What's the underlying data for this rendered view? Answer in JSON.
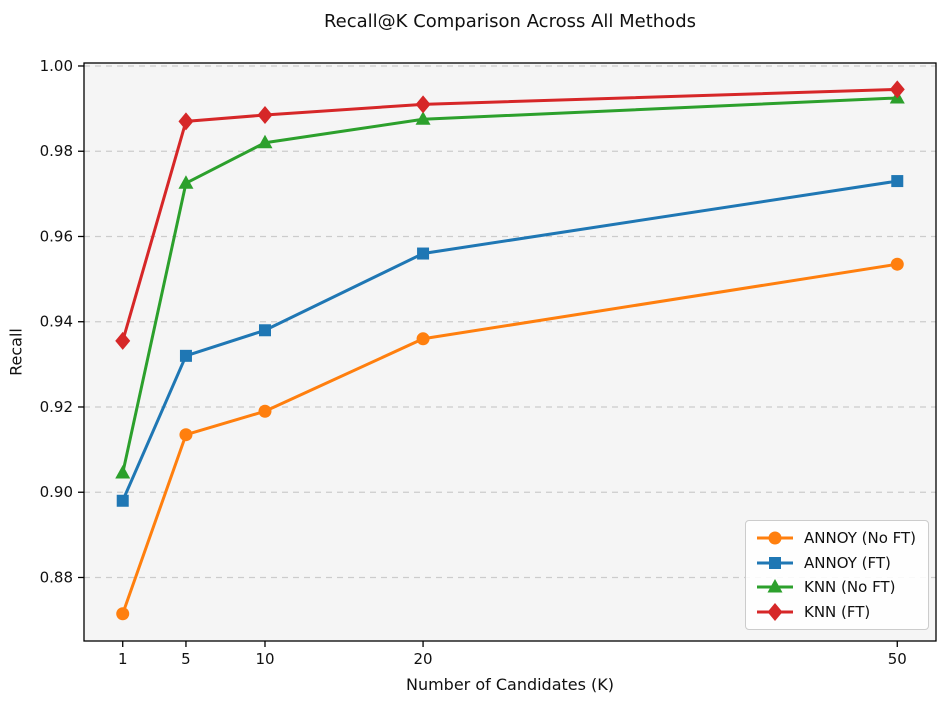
{
  "chart_data": {
    "type": "line",
    "title": "Recall@K Comparison Across All Methods",
    "xlabel": "Number of Candidates (K)",
    "ylabel": "Recall",
    "x": [
      1,
      5,
      10,
      20,
      50
    ],
    "xticks": [
      1,
      5,
      10,
      20,
      50
    ],
    "yticks": [
      0.88,
      0.9,
      0.92,
      0.94,
      0.96,
      0.98,
      1.0
    ],
    "xlim": [
      -1.45,
      52.45
    ],
    "ylim": [
      0.8651,
      1.0007
    ],
    "grid": "horizontal-dashed",
    "legend_position": "lower right",
    "series": [
      {
        "name": "ANNOY (No FT)",
        "marker": "circle",
        "color": "#ff7f0e",
        "values": [
          0.8715,
          0.9135,
          0.919,
          0.936,
          0.9535
        ]
      },
      {
        "name": "ANNOY (FT)",
        "marker": "square",
        "color": "#1f77b4",
        "values": [
          0.898,
          0.932,
          0.938,
          0.956,
          0.973
        ]
      },
      {
        "name": "KNN (No FT)",
        "marker": "triangle",
        "color": "#2ca02c",
        "values": [
          0.9045,
          0.9725,
          0.982,
          0.9875,
          0.9925
        ]
      },
      {
        "name": "KNN (FT)",
        "marker": "diamond",
        "color": "#d62728",
        "values": [
          0.9355,
          0.987,
          0.9885,
          0.991,
          0.9945
        ]
      }
    ],
    "colors": {
      "plot_bg": "#f5f5f5",
      "fig_bg": "#ffffff",
      "grid": "#cccccc",
      "spine": "#000000"
    }
  }
}
